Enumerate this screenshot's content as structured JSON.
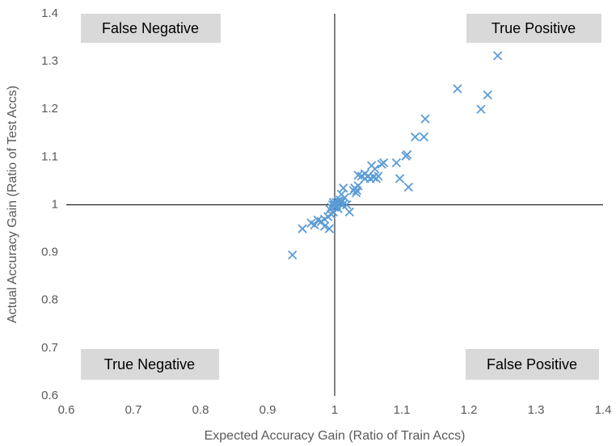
{
  "chart_data": {
    "type": "scatter",
    "xlabel": "Expected Accuracy Gain (Ratio of Train Accs)",
    "ylabel": "Actual Accuracy Gain (Ratio of Test Accs)",
    "annotations": [
      "False Negative",
      "True Positive",
      "True Negative",
      "False Positive"
    ],
    "xlim": [
      0.6,
      1.4
    ],
    "ylim": [
      0.6,
      1.4
    ],
    "xticks": [
      0.6,
      0.7,
      0.8,
      0.9,
      1,
      1.1,
      1.2,
      1.3,
      1.4
    ],
    "yticks": [
      0.6,
      0.7,
      0.8,
      0.9,
      1,
      1.1,
      1.2,
      1.3,
      1.4
    ],
    "axis_cross": {
      "x": 1,
      "y": 1
    },
    "marker": "x",
    "color": "#5b9bd5",
    "x": [
      1.243,
      1.183,
      1.228,
      1.218,
      1.135,
      1.12,
      1.133,
      1.108,
      1.106,
      1.092,
      1.073,
      1.07,
      1.055,
      1.06,
      1.045,
      1.035,
      1.04,
      1.05,
      1.065,
      1.062,
      1.058,
      1.053,
      1.045,
      1.097,
      1.11,
      1.035,
      1.03,
      1.033,
      1.028,
      1.032,
      1.013,
      1.01,
      1.015,
      1.008,
      1.005,
      1.002,
      0.998,
      0.997,
      1.0,
      1.003,
      1.008,
      1.012,
      1.018,
      1.022,
      1.005,
      0.995,
      0.993,
      0.995,
      0.99,
      0.985,
      0.98,
      0.975,
      0.965,
      0.97,
      0.985,
      0.992,
      0.952,
      0.937,
      0.998,
      1.0,
      1.01
    ],
    "y": [
      1.312,
      1.243,
      1.23,
      1.2,
      1.18,
      1.142,
      1.142,
      1.105,
      1.102,
      1.088,
      1.088,
      1.085,
      1.082,
      1.075,
      1.065,
      1.062,
      1.06,
      1.06,
      1.06,
      1.055,
      1.058,
      1.055,
      1.055,
      1.055,
      1.037,
      1.04,
      1.035,
      1.03,
      1.03,
      1.025,
      1.035,
      1.022,
      1.015,
      1.01,
      1.008,
      1.005,
      1.005,
      1.0,
      1.0,
      0.998,
      1.003,
      1.0,
      1.0,
      0.985,
      0.992,
      0.995,
      0.99,
      0.98,
      0.975,
      0.97,
      0.965,
      0.968,
      0.962,
      0.958,
      0.955,
      0.95,
      0.95,
      0.895,
      0.985,
      0.995,
      1.005
    ]
  }
}
